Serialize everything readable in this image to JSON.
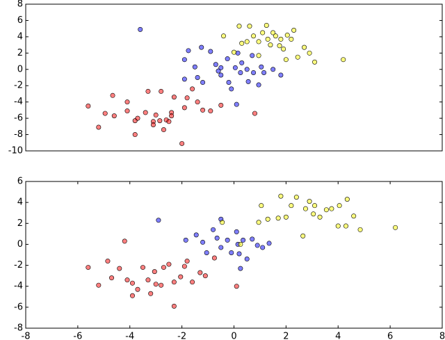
{
  "chart_data": [
    {
      "type": "scatter",
      "xlim": [
        -8,
        8
      ],
      "ylim": [
        -10,
        8
      ],
      "yticks": [
        -10,
        -8,
        -6,
        -4,
        -2,
        0,
        2,
        4,
        6,
        8
      ],
      "series": [
        {
          "color": "red",
          "x": [
            -5.6,
            -5.2,
            -4.95,
            -4.66,
            -4.6,
            -4.1,
            -4.1,
            -3.8,
            -3.8,
            -3.7,
            -3.3,
            -3.4,
            -3.1,
            -3.1,
            -2.8,
            -2.85,
            -2.7,
            -2.6,
            -2.5,
            -2.4,
            -2.3,
            -2.0,
            -1.9,
            -1.8,
            -1.6,
            -1.4,
            -1.2,
            -0.9,
            -0.5,
            0.8,
            -3.0,
            -2.4
          ],
          "y": [
            -4.5,
            -7.1,
            -5.4,
            -3.2,
            -5.7,
            -4.0,
            -5.1,
            -6.3,
            -8.0,
            -6.0,
            -2.7,
            -5.3,
            -6.4,
            -6.8,
            -2.7,
            -6.3,
            -7.4,
            -6.2,
            -6.4,
            -5.3,
            -3.4,
            -9.1,
            -4.7,
            -3.5,
            -2.4,
            -4.0,
            -5.0,
            -5.1,
            -4.4,
            -5.4,
            -5.6,
            -5.7
          ]
        },
        {
          "color": "blue",
          "x": [
            -3.6,
            -1.9,
            -1.75,
            -1.9,
            -1.5,
            -1.4,
            -1.2,
            -1.25,
            -0.9,
            -0.7,
            -0.5,
            -0.5,
            -0.25,
            -0.2,
            -0.1,
            0.05,
            0.1,
            0.25,
            0.3,
            0.5,
            0.55,
            0.7,
            0.75,
            0.95,
            1.05,
            1.15,
            1.5,
            1.8,
            0.15,
            -0.6
          ],
          "y": [
            4.9,
            1.2,
            2.3,
            -1.2,
            0.3,
            -1.0,
            -1.6,
            2.7,
            2.2,
            0.6,
            0.2,
            -0.7,
            1.3,
            -1.6,
            -2.4,
            0.2,
            -4.3,
            -0.4,
            0.8,
            0.0,
            -1.5,
            1.7,
            -0.4,
            -1.9,
            0.3,
            -0.4,
            0.0,
            -0.7,
            2.0,
            -0.2
          ]
        },
        {
          "color": "yellow",
          "x": [
            -0.4,
            0.0,
            0.2,
            0.3,
            0.5,
            0.6,
            0.75,
            0.95,
            1.1,
            1.3,
            1.4,
            1.5,
            1.6,
            1.8,
            1.9,
            2.0,
            2.2,
            2.3,
            2.45,
            2.7,
            2.9,
            3.1,
            4.2,
            0.95,
            1.25,
            2.05,
            1.75
          ],
          "y": [
            4.1,
            2.1,
            5.3,
            3.2,
            3.4,
            5.3,
            4.1,
            3.4,
            4.5,
            3.7,
            3.0,
            4.5,
            4.1,
            3.7,
            2.5,
            1.2,
            3.7,
            4.8,
            1.5,
            2.7,
            2.0,
            0.9,
            1.2,
            1.7,
            5.4,
            4.2,
            2.9
          ]
        }
      ]
    },
    {
      "type": "scatter",
      "xlim": [
        -8,
        8
      ],
      "ylim": [
        -8,
        6
      ],
      "xticks": [
        -8,
        -6,
        -4,
        -2,
        0,
        2,
        4,
        6,
        8
      ],
      "yticks": [
        -8,
        -6,
        -4,
        -2,
        0,
        2,
        4,
        6
      ],
      "series": [
        {
          "color": "red",
          "x": [
            -5.6,
            -5.2,
            -4.85,
            -4.7,
            -4.4,
            -4.2,
            -4.1,
            -3.9,
            -3.9,
            -3.7,
            -3.5,
            -3.3,
            -3.2,
            -3.0,
            -2.8,
            -2.7,
            -2.5,
            -2.3,
            -2.3,
            -2.05,
            -1.9,
            -1.8,
            -1.6,
            -1.3,
            -1.1,
            -0.75,
            0.1,
            -3.05
          ],
          "y": [
            -2.2,
            -3.9,
            -1.6,
            -3.2,
            -2.3,
            0.3,
            -3.4,
            -4.9,
            -3.7,
            -4.3,
            -2.2,
            -3.4,
            -4.7,
            -3.8,
            -3.9,
            -2.2,
            -1.9,
            -5.9,
            -3.6,
            -3.1,
            -2.1,
            -1.6,
            -3.6,
            -2.7,
            -3.0,
            -1.3,
            -4.0,
            -2.6
          ]
        },
        {
          "color": "blue",
          "x": [
            -2.9,
            -1.85,
            -1.45,
            -1.2,
            -1.05,
            -0.8,
            -0.65,
            -0.5,
            -0.25,
            -0.1,
            0.1,
            0.15,
            0.25,
            0.35,
            0.5,
            0.7,
            0.9,
            1.1,
            1.35,
            -0.5,
            0.2
          ],
          "y": [
            2.3,
            0.4,
            0.9,
            0.2,
            -0.8,
            1.4,
            0.6,
            -0.3,
            0.4,
            -0.8,
            1.2,
            0.0,
            -2.3,
            0.4,
            -1.4,
            0.5,
            -0.1,
            -0.3,
            0.1,
            2.4,
            -0.9
          ]
        },
        {
          "color": "yellow",
          "x": [
            -0.45,
            0.25,
            0.95,
            1.05,
            1.3,
            1.7,
            1.8,
            2.0,
            2.2,
            2.4,
            2.65,
            2.75,
            2.9,
            3.05,
            3.1,
            3.3,
            3.55,
            3.75,
            4.0,
            4.3,
            4.35,
            4.6,
            4.85,
            6.2,
            4.05
          ],
          "y": [
            2.1,
            0.0,
            2.1,
            3.7,
            2.4,
            2.5,
            4.6,
            2.6,
            3.7,
            4.5,
            0.8,
            3.4,
            4.1,
            2.9,
            3.7,
            2.6,
            3.3,
            3.4,
            1.75,
            1.75,
            4.3,
            2.7,
            1.4,
            1.6,
            3.7
          ]
        }
      ]
    }
  ]
}
